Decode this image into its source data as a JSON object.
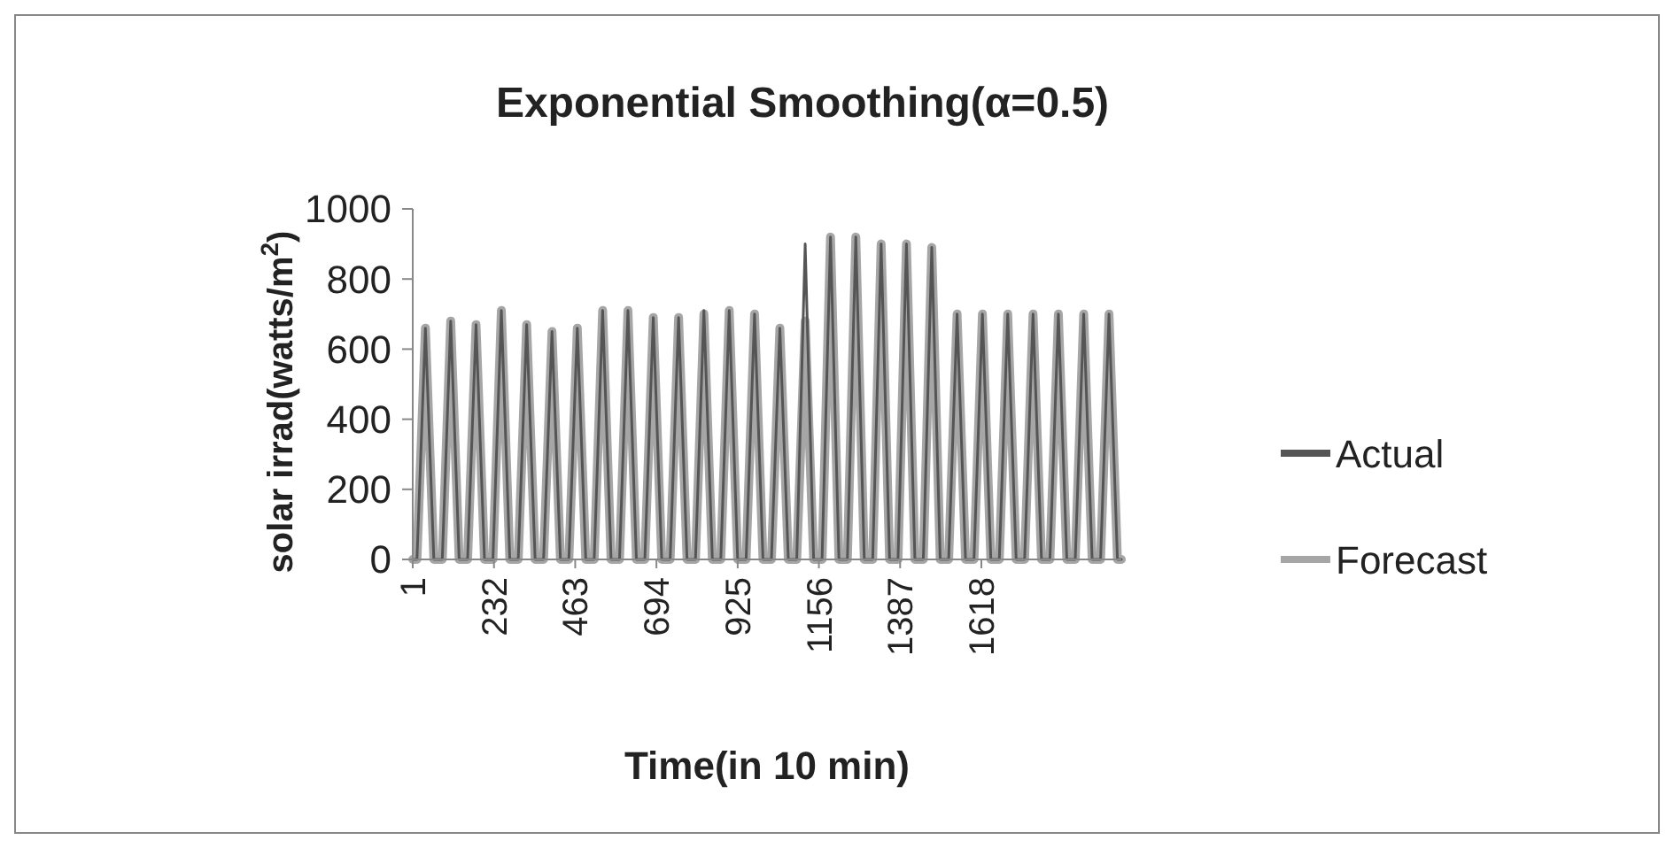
{
  "chart_data": {
    "type": "line",
    "title": "Exponential Smoothing(α=0.5)",
    "xlabel": "Time(in 10 min)",
    "ylabel": "solar irrad(watts/m$^{2}$)",
    "x": [
      1,
      13,
      37,
      61,
      73,
      85,
      109,
      133,
      145,
      157,
      181,
      205,
      217,
      229,
      253,
      277,
      289,
      301,
      325,
      349,
      361,
      373,
      397,
      421,
      433,
      445,
      469,
      493,
      505,
      517,
      541,
      565,
      577,
      589,
      613,
      637,
      649,
      661,
      685,
      709,
      721,
      733,
      757,
      781,
      793,
      805,
      829,
      853,
      865,
      877,
      901,
      925,
      937,
      949,
      973,
      997,
      1009,
      1021,
      1045,
      1069,
      1081,
      1093,
      1117,
      1141,
      1153,
      1165,
      1189,
      1213,
      1225,
      1237,
      1261,
      1285,
      1297,
      1309,
      1333,
      1357,
      1369,
      1381,
      1405,
      1429,
      1441,
      1453,
      1477,
      1501,
      1513,
      1525,
      1549,
      1573,
      1585,
      1597,
      1621,
      1645,
      1657,
      1669,
      1693,
      1717,
      1729,
      1741,
      1765,
      1789,
      1801,
      1813,
      1837,
      1861,
      1873,
      1885,
      1909,
      1933,
      1945,
      1957,
      1981,
      2005,
      2016
    ],
    "series": [
      {
        "name": "Actual",
        "color": "#555555",
        "values": [
          0,
          0,
          660,
          0,
          0,
          0,
          680,
          0,
          0,
          0,
          670,
          0,
          0,
          0,
          710,
          0,
          0,
          0,
          670,
          0,
          0,
          0,
          650,
          0,
          0,
          0,
          660,
          0,
          0,
          0,
          710,
          0,
          0,
          0,
          710,
          0,
          0,
          0,
          690,
          0,
          0,
          0,
          690,
          0,
          0,
          0,
          710,
          0,
          0,
          0,
          710,
          0,
          0,
          0,
          700,
          0,
          0,
          0,
          660,
          0,
          0,
          0,
          900,
          0,
          0,
          0,
          920,
          0,
          0,
          0,
          920,
          0,
          0,
          0,
          900,
          0,
          0,
          0,
          900,
          0,
          0,
          0,
          890,
          0,
          0,
          0,
          700,
          0,
          0,
          0,
          700,
          0,
          0,
          0,
          700,
          0,
          0,
          0,
          700,
          0,
          0,
          0,
          700,
          0,
          0,
          0,
          700,
          0,
          0,
          0,
          700,
          0,
          0
        ]
      },
      {
        "name": "Forecast",
        "color": "#a6a6a6",
        "values": [
          0,
          0,
          660,
          0,
          0,
          0,
          680,
          0,
          0,
          0,
          670,
          0,
          0,
          0,
          710,
          0,
          0,
          0,
          670,
          0,
          0,
          0,
          650,
          0,
          0,
          0,
          660,
          0,
          0,
          0,
          710,
          0,
          0,
          0,
          710,
          0,
          0,
          0,
          690,
          0,
          0,
          0,
          690,
          0,
          0,
          0,
          700,
          0,
          0,
          0,
          710,
          0,
          0,
          0,
          700,
          0,
          0,
          0,
          660,
          0,
          0,
          0,
          680,
          0,
          0,
          0,
          920,
          0,
          0,
          0,
          920,
          0,
          0,
          0,
          900,
          0,
          0,
          0,
          900,
          0,
          0,
          0,
          890,
          0,
          0,
          0,
          700,
          0,
          0,
          0,
          700,
          0,
          0,
          0,
          700,
          0,
          0,
          0,
          700,
          0,
          0,
          0,
          700,
          0,
          0,
          0,
          700,
          0,
          0,
          0,
          700,
          0,
          0
        ]
      }
    ],
    "xlim": [
      1,
      2016
    ],
    "xticks": [
      1,
      232,
      463,
      694,
      925,
      1156,
      1387,
      1618
    ],
    "ylim": [
      0,
      1000
    ],
    "yticks": [
      0,
      200,
      400,
      600,
      800,
      1000
    ],
    "grid": false,
    "legend": "right",
    "marker": "none",
    "line_style": "solid"
  }
}
